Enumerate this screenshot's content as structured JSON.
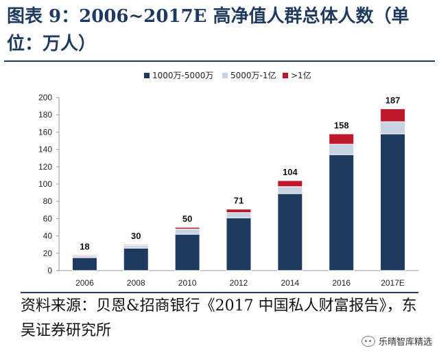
{
  "title": "图表 9：2006~2017E 高净值人群总体人数（单位：万人）",
  "source": "资料来源：贝恩&招商银行《2017 中国私人财富报告》，东吴证券研究所",
  "watermark": "乐晴智库精选",
  "chart_data": {
    "type": "bar",
    "stacked": true,
    "categories": [
      "2006",
      "2008",
      "2010",
      "2012",
      "2014",
      "2016",
      "2017E"
    ],
    "series": [
      {
        "name": "1000万-5000万",
        "color": "#1f3a5f",
        "values": [
          15,
          26,
          42,
          61,
          89,
          134,
          158
        ]
      },
      {
        "name": "5000万-1亿",
        "color": "#c7d3e3",
        "values": [
          2,
          3,
          6,
          6,
          8,
          12,
          14
        ]
      },
      {
        "name": ">1亿",
        "color": "#c0172b",
        "values": [
          1,
          1,
          2,
          4,
          7,
          12,
          15
        ]
      }
    ],
    "totals": [
      18,
      30,
      50,
      71,
      104,
      158,
      187
    ],
    "ylim": [
      0,
      200
    ],
    "yticks": [
      0,
      20,
      40,
      60,
      80,
      100,
      120,
      140,
      160,
      180,
      200
    ],
    "legend_position": "top",
    "grid": false
  }
}
